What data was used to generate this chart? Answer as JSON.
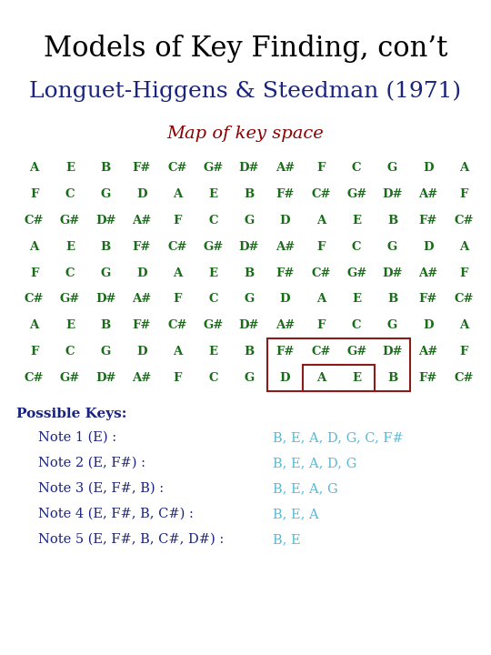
{
  "title": "Models of Key Finding, con’t",
  "subtitle": "Longuet-Higgens & Steedman (1971)",
  "map_title": "Map of key space",
  "title_color": "#000000",
  "subtitle_color": "#1a237e",
  "map_title_color": "#8b0000",
  "grid_color": "#1a6b1a",
  "grid": [
    [
      "A",
      "E",
      "B",
      "F#",
      "C#",
      "G#",
      "D#",
      "A#",
      "F",
      "C",
      "G",
      "D",
      "A"
    ],
    [
      "F",
      "C",
      "G",
      "D",
      "A",
      "E",
      "B",
      "F#",
      "C#",
      "G#",
      "D#",
      "A#",
      "F"
    ],
    [
      "C#",
      "G#",
      "D#",
      "A#",
      "F",
      "C",
      "G",
      "D",
      "A",
      "E",
      "B",
      "F#",
      "C#"
    ],
    [
      "A",
      "E",
      "B",
      "F#",
      "C#",
      "G#",
      "D#",
      "A#",
      "F",
      "C",
      "G",
      "D",
      "A"
    ],
    [
      "F",
      "C",
      "G",
      "D",
      "A",
      "E",
      "B",
      "F#",
      "C#",
      "G#",
      "D#",
      "A#",
      "F"
    ],
    [
      "C#",
      "G#",
      "D#",
      "A#",
      "F",
      "C",
      "G",
      "D",
      "A",
      "E",
      "B",
      "F#",
      "C#"
    ],
    [
      "A",
      "E",
      "B",
      "F#",
      "C#",
      "G#",
      "D#",
      "A#",
      "F",
      "C",
      "G",
      "D",
      "A"
    ],
    [
      "F",
      "C",
      "G",
      "D",
      "A",
      "E",
      "B",
      "F#",
      "C#",
      "G#",
      "D#",
      "A#",
      "F"
    ],
    [
      "C#",
      "G#",
      "D#",
      "A#",
      "F",
      "C",
      "G",
      "D",
      "A",
      "E",
      "B",
      "F#",
      "C#"
    ]
  ],
  "rect_color": "#8b1a1a",
  "possible_keys_label": "Possible Keys:",
  "notes": [
    {
      "label": "Note 1 (E) :",
      "keys": "B, E, A, D, G, C, F#"
    },
    {
      "label": "Note 2 (E, F#) :",
      "keys": "B, E, A, D, G"
    },
    {
      "label": "Note 3 (E, F#, B) :",
      "keys": "B, E, A, G"
    },
    {
      "label": "Note 4 (E, F#, B, C#) :",
      "keys": "B, E, A"
    },
    {
      "label": "Note 5 (E, F#, B, C#, D#) :",
      "keys": "B, E"
    }
  ],
  "notes_label_color": "#1a237e",
  "notes_keys_color": "#5bb8d4",
  "bg_color": "#ffffff"
}
